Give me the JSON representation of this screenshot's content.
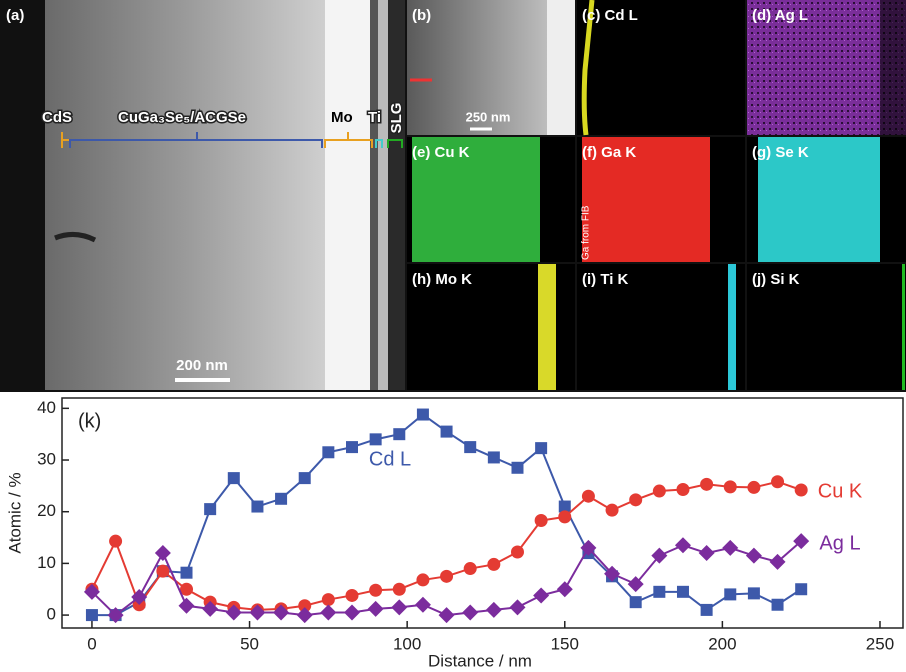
{
  "panels": {
    "a": {
      "label": "(a)",
      "cds": "CdS",
      "absorber": "CuGa₃Se₅/ACGSe",
      "mo": "Mo",
      "ti": "Ti",
      "slg": "SLG",
      "scale": "200 nm"
    },
    "b": {
      "label": "(b)",
      "scale": "250 nm"
    },
    "c": {
      "label": "(c) Cd L"
    },
    "d": {
      "label": "(d) Ag L"
    },
    "e": {
      "label": "(e) Cu K"
    },
    "f": {
      "label": "(f) Ga K",
      "note": "Ga from FIB"
    },
    "g": {
      "label": "(g) Se K"
    },
    "h": {
      "label": "(h) Mo K"
    },
    "i": {
      "label": "(i) Ti K"
    },
    "j": {
      "label": "(j) Si K"
    }
  },
  "chart_data": {
    "type": "line",
    "panel_label": "(k)",
    "xlabel": "Distance / nm",
    "ylabel": "Atomic / %",
    "xlim": [
      -9.5,
      257.3
    ],
    "ylim": [
      -2.5,
      42
    ],
    "xticks": [
      0,
      50,
      100,
      150,
      200,
      250
    ],
    "yticks": [
      0,
      10,
      20,
      30,
      40
    ],
    "x": [
      0,
      7.5,
      15,
      22.5,
      30,
      37.5,
      45,
      52.5,
      60,
      67.5,
      75,
      82.5,
      90,
      97.5,
      105,
      112.5,
      120,
      127.5,
      135,
      142.5,
      150,
      157.5,
      165,
      172.5,
      180,
      187.5,
      195,
      202.5,
      210,
      217.5,
      225
    ],
    "series": [
      {
        "name": "Cd L",
        "color": "#3d59aa",
        "marker": "square",
        "values": [
          0,
          0,
          2.5,
          8.5,
          8.2,
          20.5,
          26.5,
          21,
          22.5,
          26.5,
          31.5,
          32.5,
          34,
          35,
          38.8,
          35.5,
          32.5,
          30.5,
          28.5,
          32.3,
          21,
          12,
          7.5,
          2.5,
          4.5,
          4.5,
          1,
          4,
          4.2,
          2,
          5
        ]
      },
      {
        "name": "Cu K",
        "color": "#e43b33",
        "marker": "circle",
        "values": [
          5,
          14.3,
          2,
          8.5,
          5,
          2.5,
          1.5,
          1,
          1.2,
          1.8,
          3,
          3.8,
          4.8,
          5,
          6.8,
          7.5,
          9,
          9.8,
          12.2,
          18.3,
          19,
          23,
          20.3,
          22.3,
          24,
          24.3,
          25.3,
          24.8,
          24.7,
          25.8,
          24.2
        ]
      },
      {
        "name": "Ag L",
        "color": "#7b2c9d",
        "marker": "diamond",
        "values": [
          4.5,
          0,
          3.5,
          12,
          1.8,
          1.2,
          0.5,
          0.5,
          0.5,
          0,
          0.5,
          0.5,
          1.2,
          1.5,
          2,
          0,
          0.5,
          1,
          1.5,
          3.8,
          5,
          13,
          8,
          6,
          11.5,
          13.5,
          12,
          13,
          11.5,
          10.3,
          14.3
        ]
      }
    ]
  }
}
